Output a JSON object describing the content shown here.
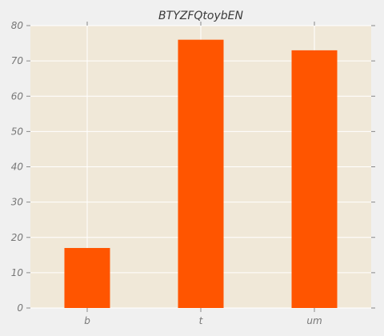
{
  "chart_data": {
    "type": "bar",
    "title": "BTYZFQtoybEN",
    "xlabel": "",
    "ylabel": "",
    "categories": [
      "b",
      "t",
      "um"
    ],
    "values": [
      17,
      76,
      73
    ],
    "ylim": [
      0,
      80
    ],
    "yticks": [
      "0",
      "10",
      "20",
      "30",
      "40",
      "50",
      "60",
      "70",
      "80"
    ],
    "grid": true,
    "legend": "none",
    "colors": {
      "bar": "#ff5500",
      "plot_background": "#f0e8d8",
      "figure_background": "#f0f0f0",
      "grid": "#ffffff",
      "tick_text": "#777777",
      "title_text": "#3a3a3a"
    }
  }
}
